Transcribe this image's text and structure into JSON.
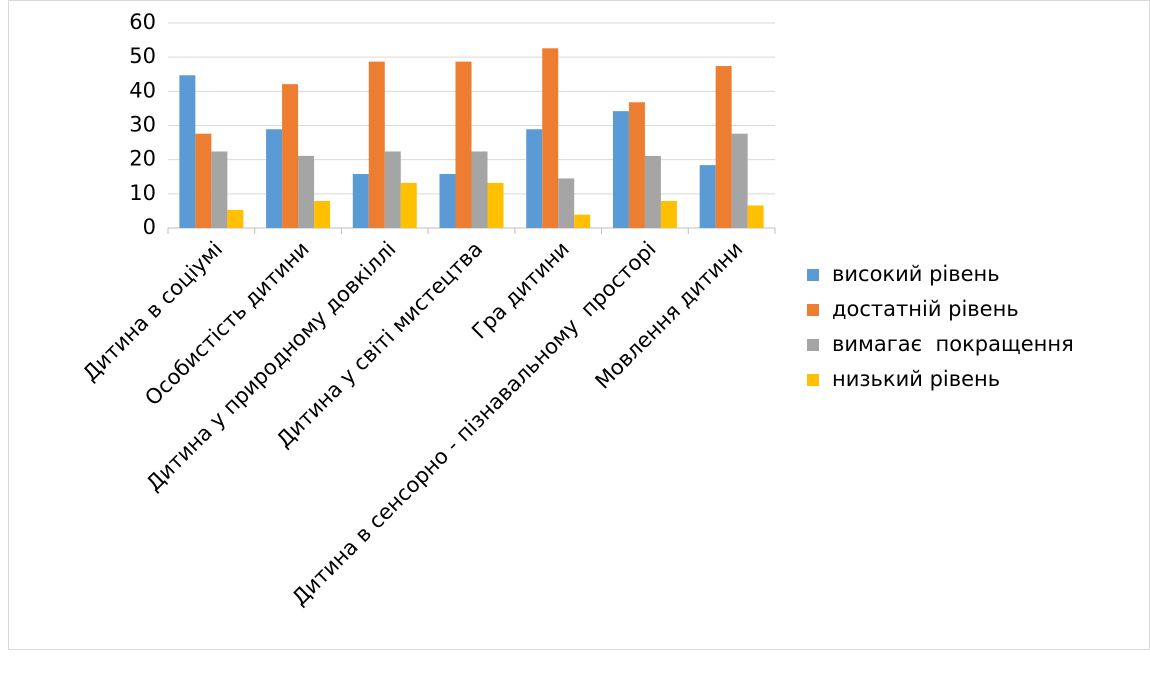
{
  "chart_data": {
    "type": "bar",
    "categories": [
      "Дитина в соціумі",
      "Особистість дитини",
      "Дитина у природному довкіллі",
      "Дитина у світі мистецтва",
      "Гра дитини",
      "Дитина в сенсорно - пізнавальному  просторі",
      "Мовлення дитини"
    ],
    "series": [
      {
        "name": "високий рівень",
        "color": "#5b9bd5",
        "values": [
          44.7,
          28.9,
          15.8,
          15.8,
          28.9,
          34.2,
          18.4
        ]
      },
      {
        "name": "достатній рівень",
        "color": "#ed7d31",
        "values": [
          27.6,
          42.1,
          48.7,
          48.7,
          52.6,
          36.8,
          47.4
        ]
      },
      {
        "name": "вимагає  покращення",
        "color": "#a5a5a5",
        "values": [
          22.4,
          21.1,
          22.4,
          22.4,
          14.5,
          21.1,
          27.6
        ]
      },
      {
        "name": "низький рівень",
        "color": "#ffc000",
        "values": [
          5.3,
          7.9,
          13.2,
          13.2,
          3.9,
          7.9,
          6.6
        ]
      }
    ],
    "ylim": [
      0,
      60
    ],
    "yticks": [
      0,
      10,
      20,
      30,
      40,
      50,
      60
    ],
    "grid": true,
    "legend": "right"
  }
}
